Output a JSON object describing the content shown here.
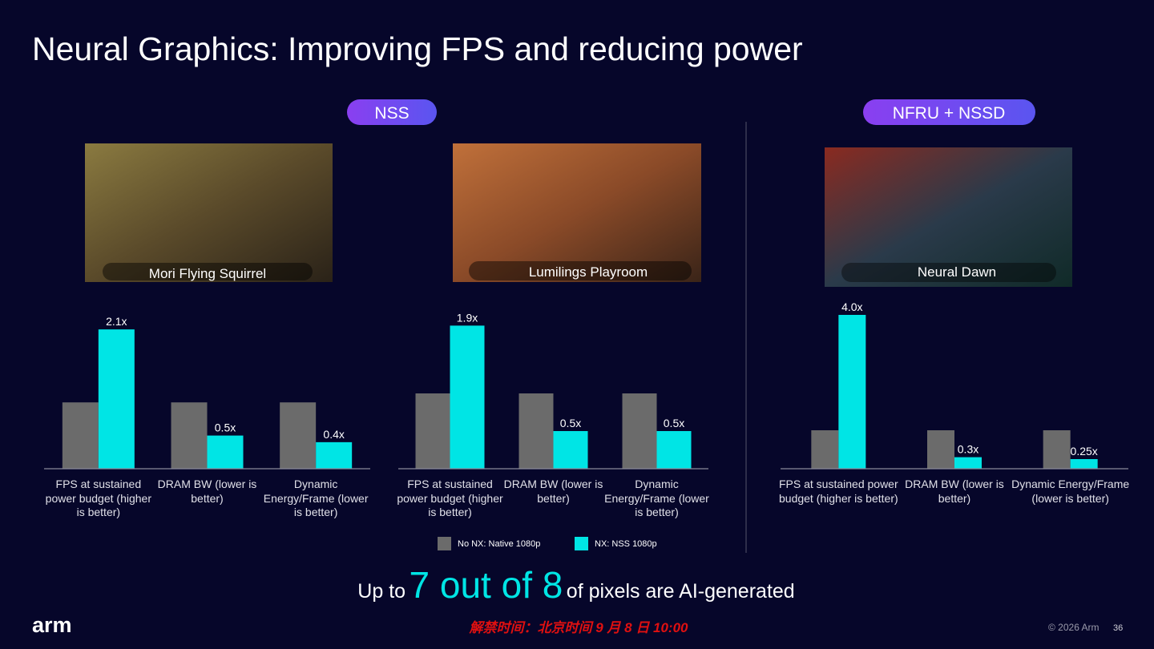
{
  "title": "Neural Graphics: Improving FPS and reducing power",
  "sections": [
    {
      "label": "NSS"
    },
    {
      "label": "NFRU + NSSD"
    }
  ],
  "images": [
    {
      "caption": "Mori Flying Squirrel"
    },
    {
      "caption": "Lumilings Playroom"
    },
    {
      "caption": "Neural Dawn"
    }
  ],
  "chart_data": [
    {
      "type": "bar",
      "categories": [
        "FPS at sustained power budget (higher is better)",
        "DRAM BW (lower is better)",
        "Dynamic Energy/Frame (lower is better)"
      ],
      "series": [
        {
          "color": "#6b6b6b",
          "values": [
            1,
            1,
            1
          ]
        },
        {
          "color": "#00e5e5",
          "values": [
            2.1,
            0.5,
            0.4
          ],
          "value_labels": [
            "2.1x",
            "0.5x",
            "0.4x"
          ]
        }
      ],
      "ylim": [
        0,
        2.5
      ]
    },
    {
      "type": "bar",
      "categories": [
        "FPS at sustained power budget (higher is better)",
        "DRAM BW (lower is better)",
        "Dynamic Energy/Frame (lower is better)"
      ],
      "series": [
        {
          "name": "No NX: Native 1080p",
          "color": "#6b6b6b",
          "values": [
            1,
            1,
            1
          ]
        },
        {
          "name": "NX: NSS 1080p",
          "color": "#00e5e5",
          "values": [
            1.9,
            0.5,
            0.5
          ],
          "value_labels": [
            "1.9x",
            "0.5x",
            "0.5x"
          ]
        }
      ],
      "ylim": [
        0,
        2.5
      ],
      "legend": "bottom"
    },
    {
      "type": "bar",
      "categories": [
        "FPS at sustained power budget (higher is better)",
        "DRAM BW (lower is better)",
        "Dynamic Energy/Frame (lower is better)"
      ],
      "series": [
        {
          "color": "#6b6b6b",
          "values": [
            1,
            1,
            1
          ]
        },
        {
          "color": "#00e5e5",
          "values": [
            4.0,
            0.3,
            0.25
          ],
          "value_labels": [
            "4.0x",
            "0.3x",
            "0.25x"
          ]
        }
      ],
      "ylim": [
        0,
        4.5
      ]
    }
  ],
  "tagline": {
    "before": "Up to",
    "highlight": "7 out of 8",
    "after": "of pixels are AI-generated"
  },
  "footer": {
    "logo": "arm",
    "embargo": "解禁时间：北京时间 9 月 8 日 10:00",
    "copyright": "© 2026 Arm",
    "page": 36
  }
}
